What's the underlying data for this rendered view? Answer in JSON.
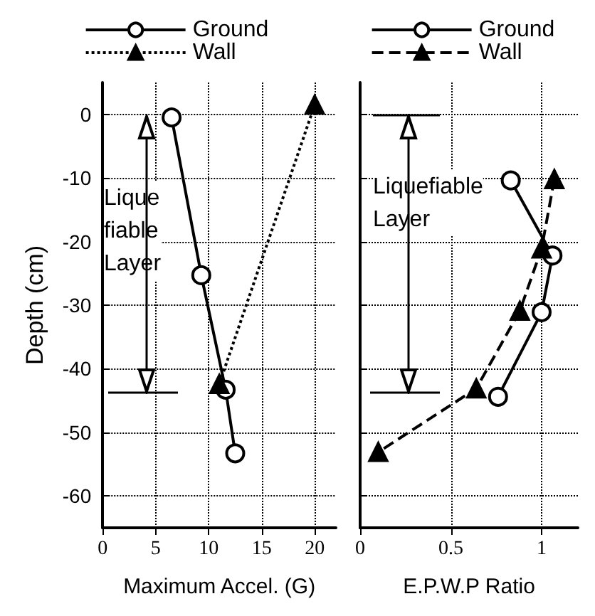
{
  "chart_data": [
    {
      "type": "line",
      "xlabel": "Maximum Accel. (G)",
      "ylabel": "Depth (cm)",
      "xlim": [
        0,
        22
      ],
      "xticks": [
        0,
        5,
        10,
        15,
        20
      ],
      "ylim": [
        -65,
        5
      ],
      "yticks": [
        0,
        -10,
        -20,
        -30,
        -40,
        -50,
        -60
      ],
      "grid": true,
      "legend": "top",
      "series": [
        {
          "name": "Ground",
          "color": "#000000",
          "marker": "circle",
          "line_style": "solid",
          "x": [
            6.5,
            9.3,
            11.6,
            12.5
          ],
          "values": [
            -0.5,
            -25.3,
            -43.3,
            -53.3
          ]
        },
        {
          "name": "Wall",
          "color": "#000000",
          "marker": "triangle",
          "line_style": "dotted",
          "x": [
            20,
            11
          ],
          "values": [
            1.5,
            -42.4
          ]
        }
      ],
      "annotations": [
        "Lique\nfiable\nLayer"
      ]
    },
    {
      "type": "line",
      "xlabel": "E.P.W.P Ratio",
      "xlim": [
        0,
        1.2
      ],
      "xticks": [
        0,
        0.5,
        1
      ],
      "ylim": [
        -65,
        5
      ],
      "yticks": [
        0,
        -10,
        -20,
        -30,
        -40,
        -50,
        -60
      ],
      "grid": true,
      "legend": "top",
      "tick_labels": "x",
      "series": [
        {
          "name": "Ground",
          "color": "#000000",
          "marker": "circle",
          "line_style": "solid",
          "x": [
            0.83,
            1.06,
            1.0,
            0.76
          ],
          "values": [
            -10.4,
            -22.2,
            -31.1,
            -44.4
          ]
        },
        {
          "name": "Wall",
          "color": "#000000",
          "marker": "triangle",
          "line_style": "dashed",
          "x": [
            1.07,
            1.0,
            0.88,
            0.64,
            0.1
          ],
          "values": [
            -10.2,
            -21.1,
            -30.9,
            -43.1,
            -53.1
          ]
        }
      ],
      "annotations": [
        "Liquefiable\nLayer"
      ]
    }
  ]
}
